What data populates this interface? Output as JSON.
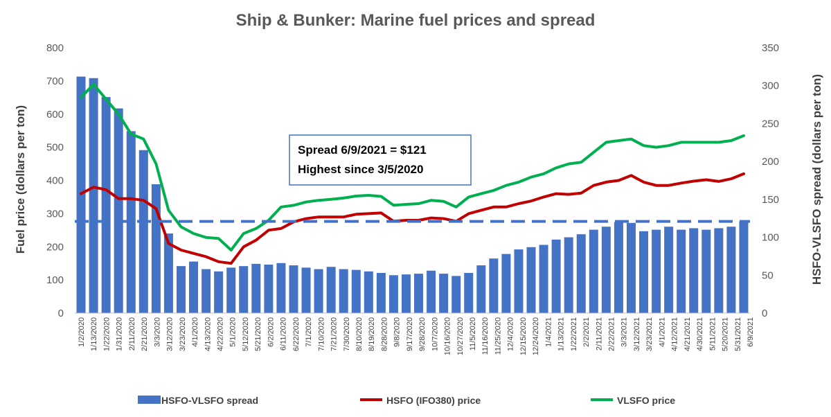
{
  "chart_data": {
    "type": "bar+line",
    "title": "Ship & Bunker: Marine fuel prices and spread",
    "y_left": {
      "label": "Fuel price  (dollars per ton)",
      "ticks": [
        0,
        100,
        200,
        300,
        400,
        500,
        600,
        700,
        800
      ],
      "ylim": [
        0,
        800
      ]
    },
    "y_right": {
      "label": "HSFO-VLSFO spread  (dollars per ton)",
      "ticks": [
        0,
        50,
        100,
        150,
        200,
        250,
        300,
        350
      ],
      "ylim": [
        0,
        350
      ]
    },
    "x_tick_labels": [
      "1/2/2020",
      "1/13/2020",
      "1/22/2020",
      "1/31/2020",
      "2/11/2020",
      "2/21/2020",
      "3/3/2020",
      "3/12/2020",
      "3/23/2020",
      "4/1/2020",
      "4/13/2020",
      "4/22/2020",
      "5/1/2020",
      "5/12/2020",
      "5/21/2020",
      "6/2/2020",
      "6/11/2020",
      "6/22/2020",
      "7/1/2020",
      "7/10/2020",
      "7/21/2020",
      "7/30/2020",
      "8/10/2020",
      "8/19/2020",
      "8/28/2020",
      "9/8/2020",
      "9/17/2020",
      "9/28/2020",
      "10/7/2020",
      "10/16/2020",
      "10/27/2020",
      "11/5/2020",
      "11/16/2020",
      "11/25/2020",
      "12/4/2020",
      "12/15/2020",
      "12/24/2020",
      "1/4/2021",
      "1/13/2021",
      "1/22/2021",
      "2/2/2021",
      "2/11/2021",
      "2/22/2021",
      "3/3/2021",
      "3/12/2021",
      "3/23/2021",
      "4/1/2021",
      "4/12/2021",
      "4/21/2021",
      "4/30/2021",
      "5/11/2021",
      "5/20/2021",
      "5/31/2021",
      "6/9/2021"
    ],
    "dates": [
      "1/2/2020",
      "1/13/2020",
      "1/22/2020",
      "1/31/2020",
      "2/11/2020",
      "2/21/2020",
      "3/3/2020",
      "3/12/2020",
      "3/23/2020",
      "4/1/2020",
      "4/13/2020",
      "4/22/2020",
      "5/1/2020",
      "5/12/2020",
      "5/21/2020",
      "6/2/2020",
      "6/11/2020",
      "6/22/2020",
      "7/1/2020",
      "7/10/2020",
      "7/21/2020",
      "7/30/2020",
      "8/10/2020",
      "8/19/2020",
      "8/28/2020",
      "9/8/2020",
      "9/17/2020",
      "9/28/2020",
      "10/7/2020",
      "10/16/2020",
      "10/27/2020",
      "11/5/2020",
      "11/16/2020",
      "11/25/2020",
      "12/4/2020",
      "12/15/2020",
      "12/24/2020",
      "1/4/2021",
      "1/13/2021",
      "1/22/2021",
      "2/2/2021",
      "2/11/2021",
      "2/22/2021",
      "3/3/2021",
      "3/12/2021",
      "3/23/2021",
      "4/1/2021",
      "4/12/2021",
      "4/21/2021",
      "4/30/2021",
      "5/11/2021",
      "5/20/2021",
      "5/31/2021",
      "6/9/2021"
    ],
    "series": [
      {
        "name": "HSFO-VLSFO spread",
        "kind": "bar",
        "axis": "right",
        "color": "#4472C4",
        "values": [
          312,
          310,
          285,
          270,
          240,
          215,
          170,
          105,
          62,
          68,
          58,
          55,
          60,
          62,
          65,
          64,
          66,
          63,
          60,
          58,
          61,
          58,
          57,
          55,
          53,
          50,
          51,
          52,
          56,
          52,
          49,
          53,
          63,
          72,
          78,
          84,
          87,
          90,
          97,
          100,
          104,
          110,
          114,
          120,
          119,
          108,
          110,
          114,
          110,
          112,
          110,
          112,
          114,
          121
        ]
      },
      {
        "name": "HSFO (IFO380) price",
        "kind": "line",
        "axis": "left",
        "color": "#C00000",
        "values": [
          360,
          380,
          372,
          345,
          345,
          340,
          315,
          210,
          190,
          180,
          170,
          155,
          150,
          200,
          220,
          250,
          255,
          275,
          285,
          290,
          290,
          290,
          298,
          300,
          302,
          277,
          280,
          280,
          287,
          285,
          277,
          300,
          310,
          320,
          320,
          330,
          338,
          350,
          360,
          358,
          362,
          385,
          395,
          400,
          415,
          395,
          385,
          385,
          392,
          398,
          402,
          397,
          405,
          420
        ]
      },
      {
        "name": "VLSFO price",
        "kind": "line",
        "axis": "left",
        "color": "#00B050",
        "values": [
          650,
          690,
          645,
          600,
          540,
          525,
          450,
          310,
          260,
          240,
          228,
          225,
          190,
          240,
          255,
          280,
          320,
          325,
          335,
          340,
          343,
          347,
          353,
          355,
          352,
          325,
          328,
          330,
          340,
          337,
          320,
          350,
          360,
          370,
          385,
          395,
          410,
          420,
          438,
          450,
          455,
          485,
          515,
          520,
          525,
          505,
          500,
          505,
          515,
          515,
          515,
          515,
          520,
          535
        ]
      }
    ],
    "reference_line": {
      "axis": "right",
      "value": 121,
      "style": "dashed",
      "color": "#4472C4"
    },
    "annotation": {
      "lines": [
        "Spread 6/9/2021 = $121",
        "Highest since 3/5/2020"
      ]
    },
    "legend": {
      "placement": "bottom"
    },
    "grid": false
  }
}
